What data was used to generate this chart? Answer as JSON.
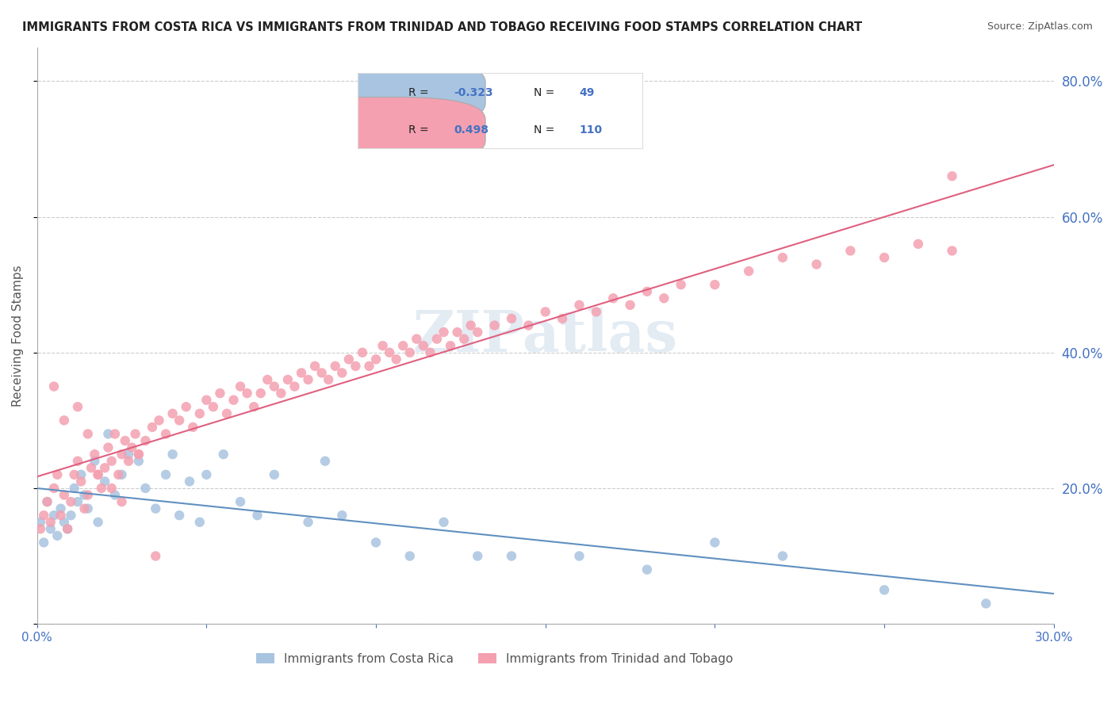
{
  "title": "IMMIGRANTS FROM COSTA RICA VS IMMIGRANTS FROM TRINIDAD AND TOBAGO RECEIVING FOOD STAMPS CORRELATION CHART",
  "source": "Source: ZipAtlas.com",
  "ylabel": "Receiving Food Stamps",
  "xlabel": "",
  "xlim": [
    0.0,
    0.3
  ],
  "ylim": [
    0.0,
    0.85
  ],
  "xticks": [
    0.0,
    0.05,
    0.1,
    0.15,
    0.2,
    0.25,
    0.3
  ],
  "xticklabels": [
    "0.0%",
    "",
    "",
    "",
    "",
    "",
    "30.0%"
  ],
  "yticks": [
    0.0,
    0.2,
    0.4,
    0.6,
    0.8
  ],
  "yticklabels": [
    "",
    "20.0%",
    "40.0%",
    "60.0%",
    "80.0%"
  ],
  "watermark": "ZIPatlas",
  "blue_color": "#a8c4e0",
  "pink_color": "#f4a0b0",
  "blue_line_color": "#6090c0",
  "pink_line_color": "#e06080",
  "axis_color": "#4472c4",
  "legend_R1": "-0.323",
  "legend_N1": "49",
  "legend_R2": "0.498",
  "legend_N2": "110",
  "label1": "Immigrants from Costa Rica",
  "label2": "Immigrants from Trinidad and Tobago",
  "costa_rica_x": [
    0.001,
    0.002,
    0.003,
    0.004,
    0.005,
    0.006,
    0.007,
    0.008,
    0.009,
    0.01,
    0.011,
    0.012,
    0.013,
    0.014,
    0.015,
    0.017,
    0.018,
    0.02,
    0.021,
    0.023,
    0.025,
    0.027,
    0.03,
    0.032,
    0.035,
    0.038,
    0.04,
    0.042,
    0.045,
    0.048,
    0.05,
    0.055,
    0.06,
    0.065,
    0.07,
    0.08,
    0.085,
    0.09,
    0.1,
    0.11,
    0.12,
    0.13,
    0.14,
    0.16,
    0.18,
    0.2,
    0.22,
    0.25,
    0.28
  ],
  "costa_rica_y": [
    0.15,
    0.12,
    0.18,
    0.14,
    0.16,
    0.13,
    0.17,
    0.15,
    0.14,
    0.16,
    0.2,
    0.18,
    0.22,
    0.19,
    0.17,
    0.24,
    0.15,
    0.21,
    0.28,
    0.19,
    0.22,
    0.25,
    0.24,
    0.2,
    0.17,
    0.22,
    0.25,
    0.16,
    0.21,
    0.15,
    0.22,
    0.25,
    0.18,
    0.16,
    0.22,
    0.15,
    0.24,
    0.16,
    0.12,
    0.1,
    0.15,
    0.1,
    0.1,
    0.1,
    0.08,
    0.12,
    0.1,
    0.05,
    0.03
  ],
  "trinidad_x": [
    0.001,
    0.002,
    0.003,
    0.004,
    0.005,
    0.006,
    0.007,
    0.008,
    0.009,
    0.01,
    0.011,
    0.012,
    0.013,
    0.014,
    0.015,
    0.016,
    0.017,
    0.018,
    0.019,
    0.02,
    0.021,
    0.022,
    0.023,
    0.024,
    0.025,
    0.026,
    0.027,
    0.028,
    0.029,
    0.03,
    0.032,
    0.034,
    0.036,
    0.038,
    0.04,
    0.042,
    0.044,
    0.046,
    0.048,
    0.05,
    0.052,
    0.054,
    0.056,
    0.058,
    0.06,
    0.062,
    0.064,
    0.066,
    0.068,
    0.07,
    0.072,
    0.074,
    0.076,
    0.078,
    0.08,
    0.082,
    0.084,
    0.086,
    0.088,
    0.09,
    0.092,
    0.094,
    0.096,
    0.098,
    0.1,
    0.102,
    0.104,
    0.106,
    0.108,
    0.11,
    0.112,
    0.114,
    0.116,
    0.118,
    0.12,
    0.122,
    0.124,
    0.126,
    0.128,
    0.13,
    0.135,
    0.14,
    0.145,
    0.15,
    0.155,
    0.16,
    0.165,
    0.17,
    0.175,
    0.18,
    0.185,
    0.19,
    0.2,
    0.21,
    0.22,
    0.23,
    0.24,
    0.25,
    0.26,
    0.27,
    0.005,
    0.008,
    0.012,
    0.015,
    0.018,
    0.022,
    0.025,
    0.03,
    0.035,
    0.27
  ],
  "trinidad_y": [
    0.14,
    0.16,
    0.18,
    0.15,
    0.2,
    0.22,
    0.16,
    0.19,
    0.14,
    0.18,
    0.22,
    0.24,
    0.21,
    0.17,
    0.19,
    0.23,
    0.25,
    0.22,
    0.2,
    0.23,
    0.26,
    0.24,
    0.28,
    0.22,
    0.25,
    0.27,
    0.24,
    0.26,
    0.28,
    0.25,
    0.27,
    0.29,
    0.3,
    0.28,
    0.31,
    0.3,
    0.32,
    0.29,
    0.31,
    0.33,
    0.32,
    0.34,
    0.31,
    0.33,
    0.35,
    0.34,
    0.32,
    0.34,
    0.36,
    0.35,
    0.34,
    0.36,
    0.35,
    0.37,
    0.36,
    0.38,
    0.37,
    0.36,
    0.38,
    0.37,
    0.39,
    0.38,
    0.4,
    0.38,
    0.39,
    0.41,
    0.4,
    0.39,
    0.41,
    0.4,
    0.42,
    0.41,
    0.4,
    0.42,
    0.43,
    0.41,
    0.43,
    0.42,
    0.44,
    0.43,
    0.44,
    0.45,
    0.44,
    0.46,
    0.45,
    0.47,
    0.46,
    0.48,
    0.47,
    0.49,
    0.48,
    0.5,
    0.5,
    0.52,
    0.54,
    0.53,
    0.55,
    0.54,
    0.56,
    0.55,
    0.35,
    0.3,
    0.32,
    0.28,
    0.22,
    0.2,
    0.18,
    0.25,
    0.1,
    0.66
  ]
}
